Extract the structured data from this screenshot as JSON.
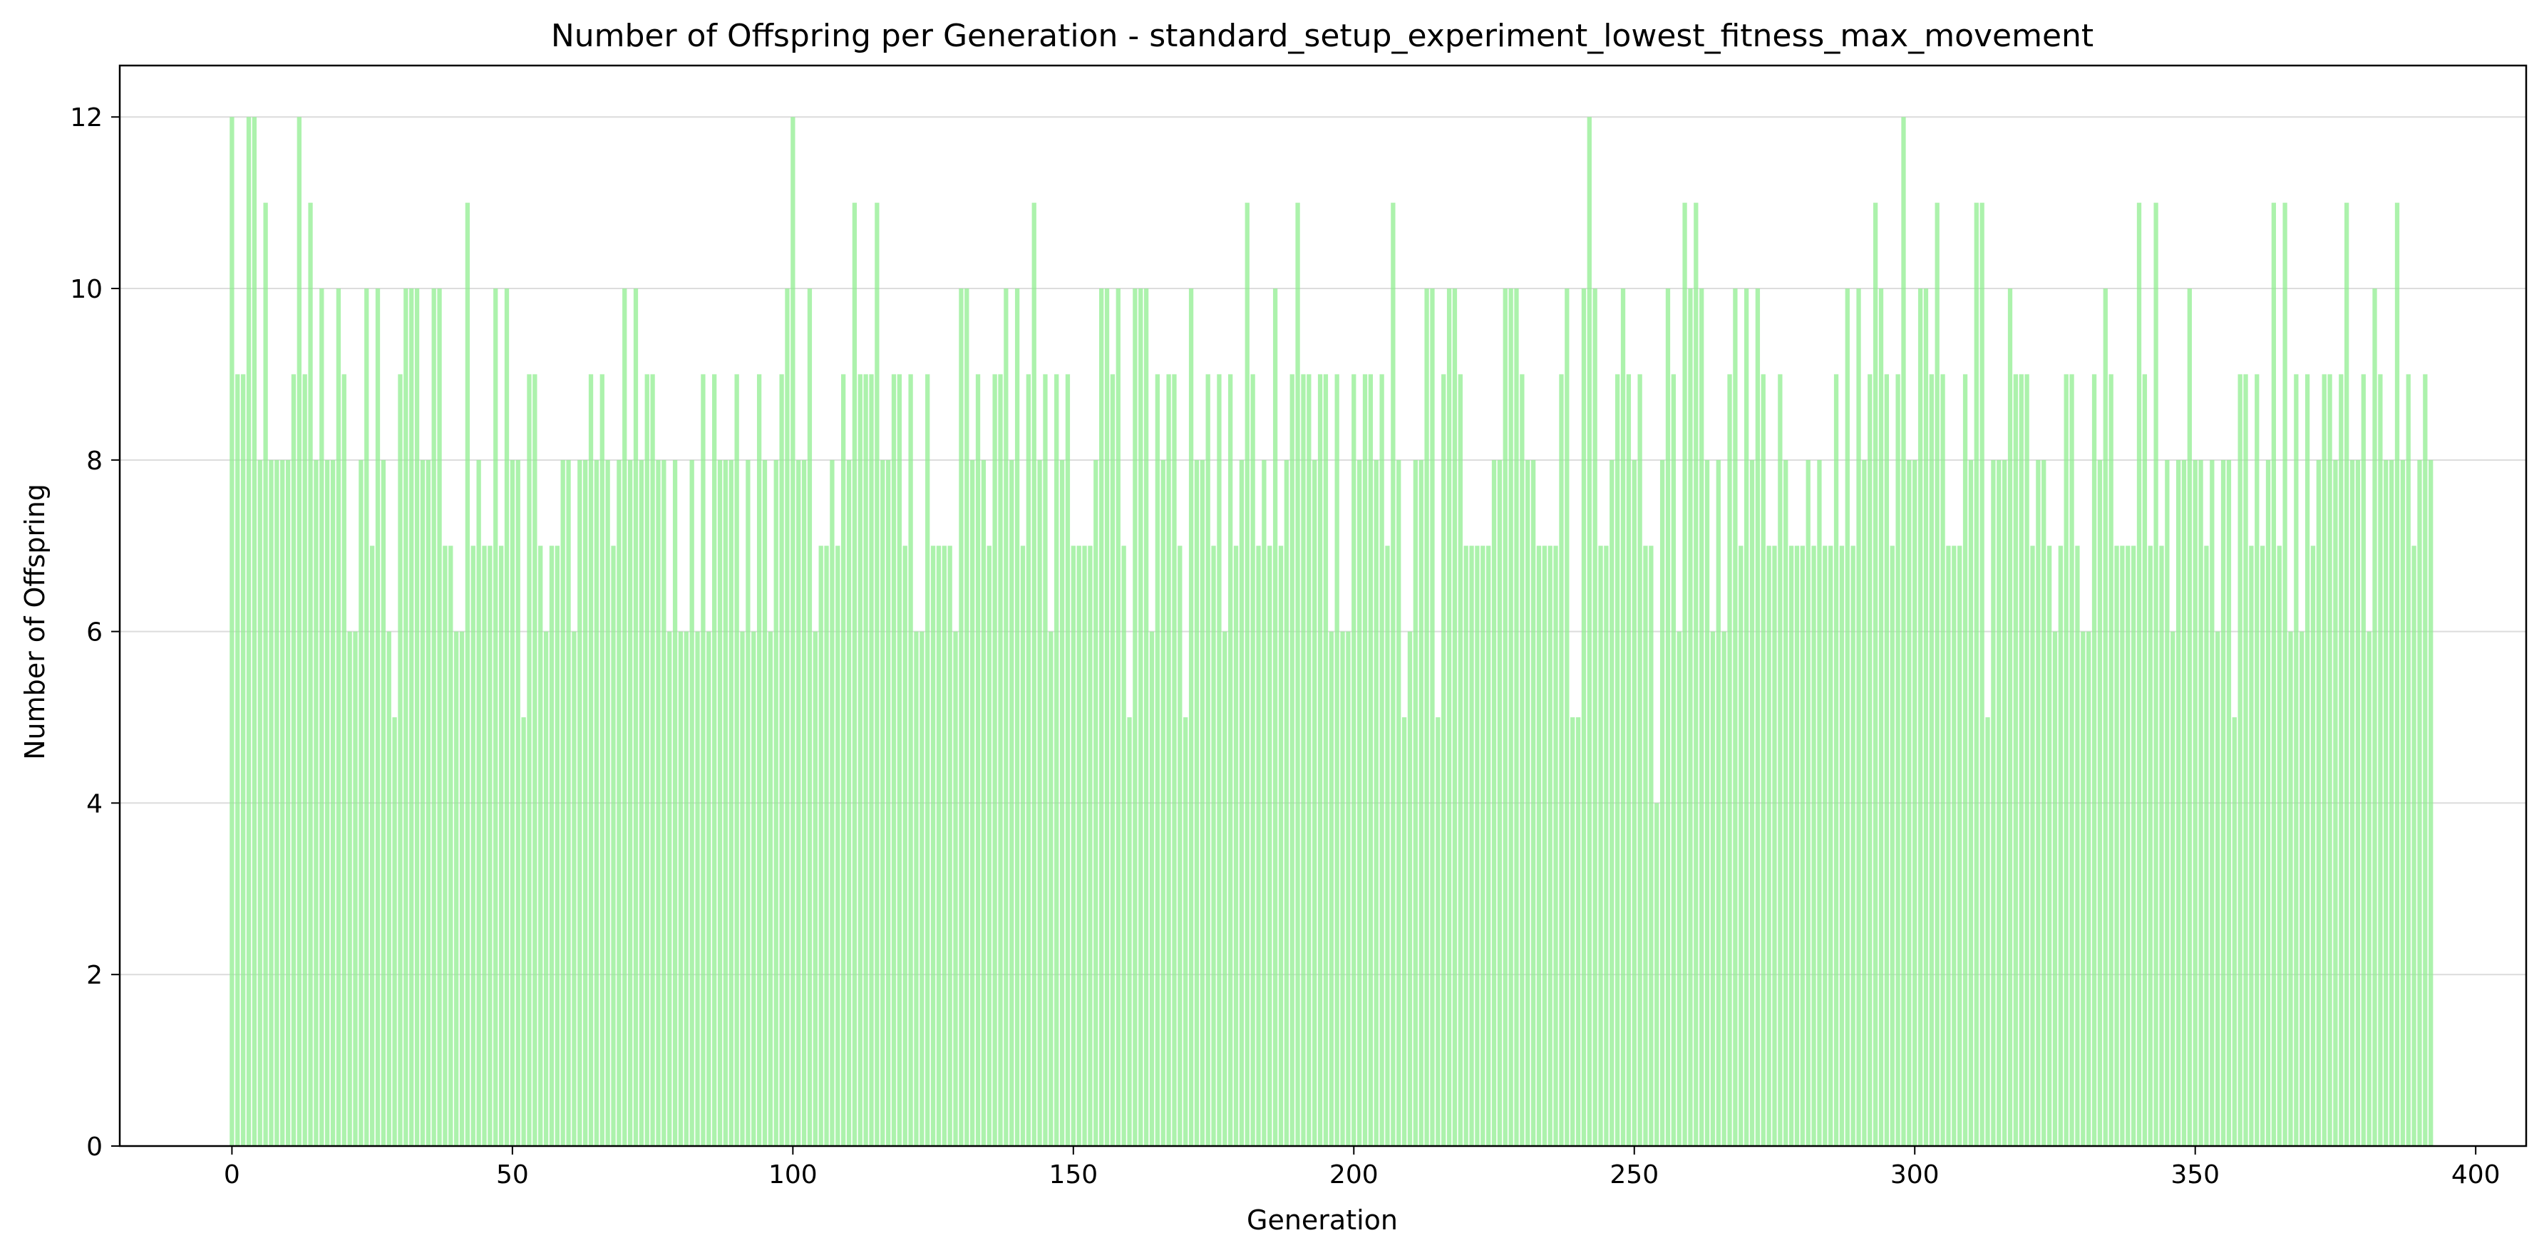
{
  "chart_data": {
    "type": "bar",
    "title": "Number of Offspring per Generation - standard_setup_experiment_lowest_fitness_max_movement",
    "xlabel": "Generation",
    "ylabel": "Number of Offspring",
    "xlim": [
      -20,
      409
    ],
    "ylim": [
      0,
      12.6
    ],
    "xticks": [
      0,
      50,
      100,
      150,
      200,
      250,
      300,
      350,
      400
    ],
    "yticks": [
      0,
      2,
      4,
      6,
      8,
      10,
      12
    ],
    "grid": "horizontal",
    "bar_color": "#90ee90",
    "x_start": 0,
    "values": [
      12,
      9,
      9,
      12,
      12,
      8,
      11,
      8,
      8,
      8,
      8,
      9,
      12,
      9,
      11,
      8,
      10,
      8,
      8,
      10,
      9,
      6,
      6,
      8,
      10,
      7,
      10,
      8,
      6,
      5,
      9,
      10,
      10,
      10,
      8,
      8,
      10,
      10,
      7,
      7,
      6,
      6,
      11,
      7,
      8,
      7,
      7,
      10,
      7,
      10,
      8,
      8,
      5,
      9,
      9,
      7,
      6,
      7,
      7,
      8,
      8,
      6,
      8,
      8,
      9,
      8,
      9,
      8,
      7,
      8,
      10,
      8,
      10,
      8,
      9,
      9,
      8,
      8,
      6,
      8,
      6,
      6,
      8,
      6,
      9,
      6,
      9,
      8,
      8,
      8,
      9,
      6,
      8,
      6,
      9,
      8,
      6,
      8,
      9,
      10,
      12,
      8,
      8,
      10,
      6,
      7,
      7,
      8,
      7,
      9,
      8,
      11,
      9,
      9,
      9,
      11,
      8,
      8,
      9,
      9,
      7,
      9,
      6,
      6,
      9,
      7,
      7,
      7,
      7,
      6,
      10,
      10,
      8,
      9,
      8,
      7,
      9,
      9,
      10,
      8,
      10,
      7,
      9,
      11,
      8,
      9,
      6,
      9,
      8,
      9,
      7,
      7,
      7,
      7,
      8,
      10,
      10,
      9,
      10,
      7,
      5,
      10,
      10,
      10,
      6,
      9,
      8,
      9,
      9,
      7,
      5,
      10,
      8,
      8,
      9,
      7,
      9,
      6,
      9,
      7,
      8,
      11,
      9,
      7,
      8,
      7,
      10,
      7,
      8,
      9,
      11,
      9,
      9,
      8,
      9,
      9,
      6,
      9,
      6,
      6,
      9,
      8,
      9,
      9,
      8,
      9,
      7,
      11,
      8,
      5,
      6,
      8,
      8,
      10,
      10,
      5,
      9,
      10,
      10,
      9,
      7,
      7,
      7,
      7,
      7,
      8,
      8,
      10,
      10,
      10,
      9,
      8,
      8,
      7,
      7,
      7,
      7,
      9,
      10,
      5,
      5,
      10,
      12,
      10,
      7,
      7,
      8,
      9,
      10,
      9,
      8,
      9,
      7,
      7,
      4,
      8,
      10,
      9,
      6,
      11,
      10,
      11,
      10,
      8,
      6,
      8,
      6,
      9,
      10,
      7,
      10,
      8,
      10,
      9,
      7,
      7,
      9,
      8,
      7,
      7,
      7,
      8,
      7,
      8,
      7,
      7,
      9,
      7,
      10,
      7,
      10,
      8,
      9,
      11,
      10,
      9,
      7,
      9,
      12,
      8,
      8,
      10,
      10,
      9,
      11,
      9,
      7,
      7,
      7,
      9,
      8,
      11,
      11,
      5,
      8,
      8,
      8,
      10,
      9,
      9,
      9,
      7,
      8,
      8,
      7,
      6,
      7,
      9,
      9,
      7,
      6,
      6,
      9,
      8,
      10,
      9,
      7,
      7,
      7,
      7,
      11,
      9,
      7,
      11,
      7,
      8,
      6,
      8,
      8,
      10,
      8,
      8,
      7,
      8,
      6,
      8,
      8,
      5,
      9,
      9,
      7,
      9,
      7,
      8,
      11,
      7,
      11,
      6,
      9,
      6,
      9,
      7,
      8,
      9,
      9,
      8,
      9,
      11,
      8,
      8,
      9,
      6,
      10,
      9,
      8,
      8,
      11,
      8,
      9,
      7,
      8,
      9,
      8
    ]
  }
}
